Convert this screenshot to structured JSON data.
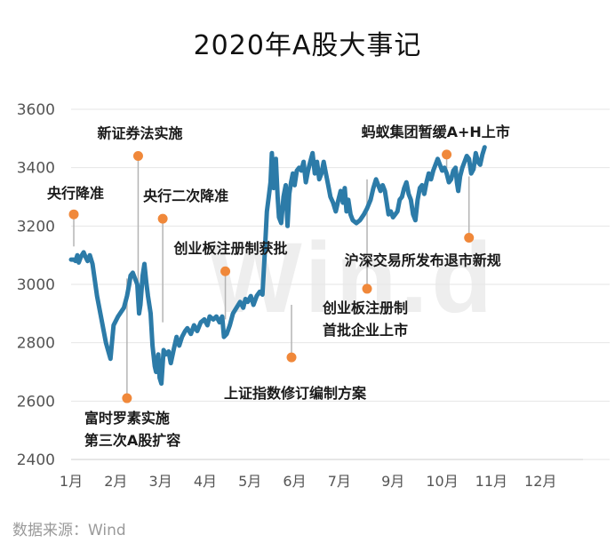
{
  "title": "2020年A股大事记",
  "source": "数据来源：Wind",
  "watermark": "Win.d",
  "colors": {
    "line": "#2c7ba8",
    "marker": "#f0883a",
    "leader": "#b4b4b4",
    "grid": "#e6e6e6",
    "axis": "#555555"
  },
  "chart_data": {
    "type": "line",
    "title": "2020年A股大事记",
    "xlabel": "",
    "ylabel": "",
    "ylim": [
      2400,
      3600
    ],
    "yticks": [
      2400,
      2600,
      2800,
      3000,
      3200,
      3400,
      3600
    ],
    "xlim": [
      1,
      12.45
    ],
    "x_tick_labels": [
      "1月",
      "2月",
      "3月",
      "4月",
      "5月",
      "6月",
      "7月",
      "9月",
      "10月",
      "11月",
      "12月"
    ],
    "x_tick_positions": [
      1,
      2,
      3,
      4,
      5,
      6,
      7,
      8.2,
      9.3,
      10.4,
      11.5
    ],
    "grid": true,
    "series": [
      {
        "name": "",
        "points": [
          [
            1.0,
            3085
          ],
          [
            1.06,
            3085
          ],
          [
            1.1,
            3080
          ],
          [
            1.14,
            3100
          ],
          [
            1.17,
            3075
          ],
          [
            1.22,
            3095
          ],
          [
            1.28,
            3110
          ],
          [
            1.32,
            3095
          ],
          [
            1.37,
            3080
          ],
          [
            1.42,
            3100
          ],
          [
            1.48,
            3070
          ],
          [
            1.58,
            2960
          ],
          [
            1.68,
            2880
          ],
          [
            1.78,
            2800
          ],
          [
            1.88,
            2745
          ],
          [
            1.95,
            2860
          ],
          [
            2.05,
            2890
          ],
          [
            2.18,
            2920
          ],
          [
            2.25,
            2960
          ],
          [
            2.3,
            3000
          ],
          [
            2.33,
            3030
          ],
          [
            2.38,
            3040
          ],
          [
            2.43,
            3020
          ],
          [
            2.48,
            3000
          ],
          [
            2.52,
            2900
          ],
          [
            2.55,
            2930
          ],
          [
            2.6,
            3030
          ],
          [
            2.64,
            3070
          ],
          [
            2.68,
            3010
          ],
          [
            2.72,
            2960
          ],
          [
            2.78,
            2900
          ],
          [
            2.82,
            2790
          ],
          [
            2.87,
            2720
          ],
          [
            2.9,
            2700
          ],
          [
            2.95,
            2760
          ],
          [
            2.98,
            2680
          ],
          [
            3.02,
            2660
          ],
          [
            3.07,
            2775
          ],
          [
            3.12,
            2760
          ],
          [
            3.18,
            2770
          ],
          [
            3.23,
            2730
          ],
          [
            3.3,
            2780
          ],
          [
            3.36,
            2820
          ],
          [
            3.42,
            2790
          ],
          [
            3.48,
            2820
          ],
          [
            3.55,
            2840
          ],
          [
            3.6,
            2850
          ],
          [
            3.68,
            2830
          ],
          [
            3.75,
            2860
          ],
          [
            3.82,
            2840
          ],
          [
            3.9,
            2870
          ],
          [
            3.98,
            2880
          ],
          [
            4.05,
            2860
          ],
          [
            4.1,
            2890
          ],
          [
            4.18,
            2880
          ],
          [
            4.25,
            2890
          ],
          [
            4.32,
            2870
          ],
          [
            4.38,
            2890
          ],
          [
            4.42,
            2820
          ],
          [
            4.48,
            2830
          ],
          [
            4.55,
            2860
          ],
          [
            4.62,
            2900
          ],
          [
            4.7,
            2920
          ],
          [
            4.78,
            2940
          ],
          [
            4.85,
            2920
          ],
          [
            4.9,
            2950
          ],
          [
            4.95,
            2940
          ],
          [
            5.02,
            2960
          ],
          [
            5.08,
            2930
          ],
          [
            5.15,
            2960
          ],
          [
            5.22,
            2975
          ],
          [
            5.28,
            2965
          ],
          [
            5.33,
            3100
          ],
          [
            5.38,
            3250
          ],
          [
            5.42,
            3300
          ],
          [
            5.46,
            3350
          ],
          [
            5.49,
            3450
          ],
          [
            5.53,
            3330
          ],
          [
            5.58,
            3430
          ],
          [
            5.62,
            3300
          ],
          [
            5.65,
            3230
          ],
          [
            5.7,
            3210
          ],
          [
            5.75,
            3300
          ],
          [
            5.8,
            3340
          ],
          [
            5.84,
            3200
          ],
          [
            5.88,
            3310
          ],
          [
            5.92,
            3350
          ],
          [
            5.96,
            3380
          ],
          [
            6.0,
            3340
          ],
          [
            6.05,
            3390
          ],
          [
            6.1,
            3400
          ],
          [
            6.15,
            3390
          ],
          [
            6.2,
            3420
          ],
          [
            6.25,
            3350
          ],
          [
            6.3,
            3390
          ],
          [
            6.35,
            3420
          ],
          [
            6.4,
            3450
          ],
          [
            6.45,
            3380
          ],
          [
            6.5,
            3420
          ],
          [
            6.55,
            3360
          ],
          [
            6.6,
            3380
          ],
          [
            6.65,
            3420
          ],
          [
            6.7,
            3380
          ],
          [
            6.75,
            3340
          ],
          [
            6.8,
            3300
          ],
          [
            6.86,
            3280
          ],
          [
            6.92,
            3250
          ],
          [
            6.98,
            3290
          ],
          [
            7.03,
            3320
          ],
          [
            7.08,
            3280
          ],
          [
            7.12,
            3330
          ],
          [
            7.16,
            3250
          ],
          [
            7.2,
            3290
          ],
          [
            7.25,
            3240
          ],
          [
            7.3,
            3220
          ],
          [
            7.38,
            3210
          ],
          [
            7.46,
            3220
          ],
          [
            7.55,
            3240
          ],
          [
            7.62,
            3260
          ],
          [
            7.7,
            3290
          ],
          [
            7.76,
            3330
          ],
          [
            7.82,
            3360
          ],
          [
            7.87,
            3340
          ],
          [
            7.92,
            3320
          ],
          [
            7.97,
            3340
          ],
          [
            8.02,
            3320
          ],
          [
            8.06,
            3280
          ],
          [
            8.1,
            3240
          ],
          [
            8.15,
            3250
          ],
          [
            8.2,
            3230
          ],
          [
            8.25,
            3240
          ],
          [
            8.3,
            3250
          ],
          [
            8.35,
            3290
          ],
          [
            8.4,
            3300
          ],
          [
            8.45,
            3330
          ],
          [
            8.5,
            3350
          ],
          [
            8.55,
            3310
          ],
          [
            8.6,
            3290
          ],
          [
            8.65,
            3240
          ],
          [
            8.7,
            3220
          ],
          [
            8.75,
            3290
          ],
          [
            8.8,
            3330
          ],
          [
            8.85,
            3340
          ],
          [
            8.9,
            3310
          ],
          [
            8.95,
            3350
          ],
          [
            9.0,
            3380
          ],
          [
            9.05,
            3360
          ],
          [
            9.1,
            3390
          ],
          [
            9.15,
            3410
          ],
          [
            9.2,
            3430
          ],
          [
            9.25,
            3410
          ],
          [
            9.3,
            3390
          ],
          [
            9.35,
            3400
          ],
          [
            9.4,
            3380
          ],
          [
            9.45,
            3350
          ],
          [
            9.5,
            3360
          ],
          [
            9.55,
            3390
          ],
          [
            9.6,
            3400
          ],
          [
            9.63,
            3350
          ],
          [
            9.66,
            3320
          ],
          [
            9.7,
            3370
          ],
          [
            9.75,
            3400
          ],
          [
            9.8,
            3420
          ],
          [
            9.85,
            3440
          ],
          [
            9.9,
            3430
          ],
          [
            9.95,
            3380
          ],
          [
            10.0,
            3395
          ],
          [
            10.05,
            3450
          ],
          [
            10.1,
            3420
          ],
          [
            10.15,
            3410
          ],
          [
            10.2,
            3445
          ],
          [
            10.25,
            3470
          ]
        ]
      }
    ],
    "annotations": [
      {
        "label": "央行降准",
        "date": 1.06,
        "marker_y": 3240,
        "line_to_y": 3130
      },
      {
        "label": "富时罗素实施\n第三次A股扩容",
        "date": 2.25,
        "marker_y": 2610,
        "line_to_y": 3020
      },
      {
        "label": "新证券法实施",
        "date": 2.5,
        "marker_y": 3440,
        "line_to_y": 2920
      },
      {
        "label": "央行二次降准",
        "date": 3.05,
        "marker_y": 3225,
        "line_to_y": 2870
      },
      {
        "label": "创业板注册制获批",
        "date": 4.45,
        "marker_y": 3045,
        "line_to_y": 2880
      },
      {
        "label": "上证指数修订编制方案",
        "date": 5.93,
        "marker_y": 2750,
        "line_to_y": 2930
      },
      {
        "label": "创业板注册制\n首批企业上市",
        "date": 7.62,
        "marker_y": 2985,
        "line_to_y": 3360
      },
      {
        "label": "蚂蚁集团暂缓A+H上市",
        "date": 9.4,
        "marker_y": 3445,
        "line_to_y": 3360
      },
      {
        "label": "沪深交易所发布退市新规",
        "date": 9.9,
        "marker_y": 3160,
        "line_to_y": 3370
      }
    ]
  }
}
